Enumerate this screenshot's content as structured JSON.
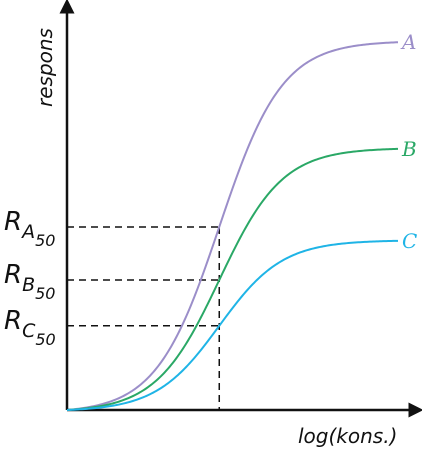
{
  "chart_data": {
    "type": "line",
    "xlabel": "log(kons.)",
    "ylabel": "respons",
    "axis_units": "none (schematic, no tick values)",
    "x_range": [
      0,
      10
    ],
    "y_range": [
      0,
      10
    ],
    "grid": false,
    "series": [
      {
        "name": "A",
        "color": "#9b8ec9",
        "max": 10.0,
        "x50": 4.6,
        "slope": 1.05
      },
      {
        "name": "B",
        "color": "#2aa866",
        "max": 7.1,
        "x50": 4.6,
        "slope": 1.05
      },
      {
        "name": "C",
        "color": "#1fb4e6",
        "max": 4.6,
        "x50": 4.6,
        "slope": 1.05
      }
    ],
    "reference_lines": {
      "x": 4.6,
      "labels": [
        {
          "main": "R",
          "sub": "A",
          "subsub": "50",
          "series": "A"
        },
        {
          "main": "R",
          "sub": "B",
          "subsub": "50",
          "series": "B"
        },
        {
          "main": "R",
          "sub": "C",
          "subsub": "50",
          "series": "C"
        }
      ]
    }
  }
}
